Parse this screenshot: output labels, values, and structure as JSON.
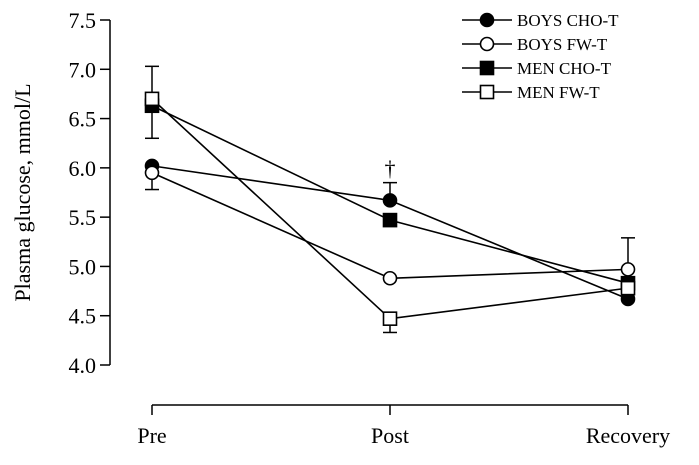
{
  "chart_data": {
    "type": "line",
    "title": "",
    "xlabel": "",
    "ylabel": "Plasma glucose, mmol/L",
    "categories": [
      "Pre",
      "Post",
      "Recovery"
    ],
    "ylim": [
      4.0,
      7.5
    ],
    "yticks": [
      4.0,
      4.5,
      5.0,
      5.5,
      6.0,
      6.5,
      7.0,
      7.5
    ],
    "ytick_labels": [
      "4.0",
      "4.5",
      "5.0",
      "5.5",
      "6.0",
      "6.5",
      "7.0",
      "7.5"
    ],
    "grid": false,
    "legend_position": "top-right",
    "series": [
      {
        "name": "BOYS CHO-T",
        "marker": "circle",
        "fill": "filled",
        "values": [
          6.02,
          5.67,
          4.67
        ],
        "error_up": [
          0.0,
          0.18,
          0.0
        ],
        "error_down": [
          0.0,
          0.0,
          0.0
        ]
      },
      {
        "name": "BOYS FW-T",
        "marker": "circle",
        "fill": "open",
        "values": [
          5.95,
          4.88,
          4.97
        ],
        "error_up": [
          0.0,
          0.0,
          0.32
        ],
        "error_down": [
          0.17,
          0.0,
          0.0
        ]
      },
      {
        "name": "MEN CHO-T",
        "marker": "square",
        "fill": "filled",
        "values": [
          6.63,
          5.47,
          4.83
        ],
        "error_up": [
          0.0,
          0.0,
          0.0
        ],
        "error_down": [
          0.33,
          0.0,
          0.0
        ]
      },
      {
        "name": "MEN FW-T",
        "marker": "square",
        "fill": "open",
        "values": [
          6.7,
          4.47,
          4.78
        ],
        "error_up": [
          0.33,
          0.0,
          0.0
        ],
        "error_down": [
          0.0,
          0.14,
          0.0
        ]
      }
    ],
    "annotations": [
      {
        "text": "†",
        "category": "Post",
        "y": 6.0
      }
    ]
  },
  "colors": {
    "line": "#000000",
    "background": "#ffffff"
  }
}
